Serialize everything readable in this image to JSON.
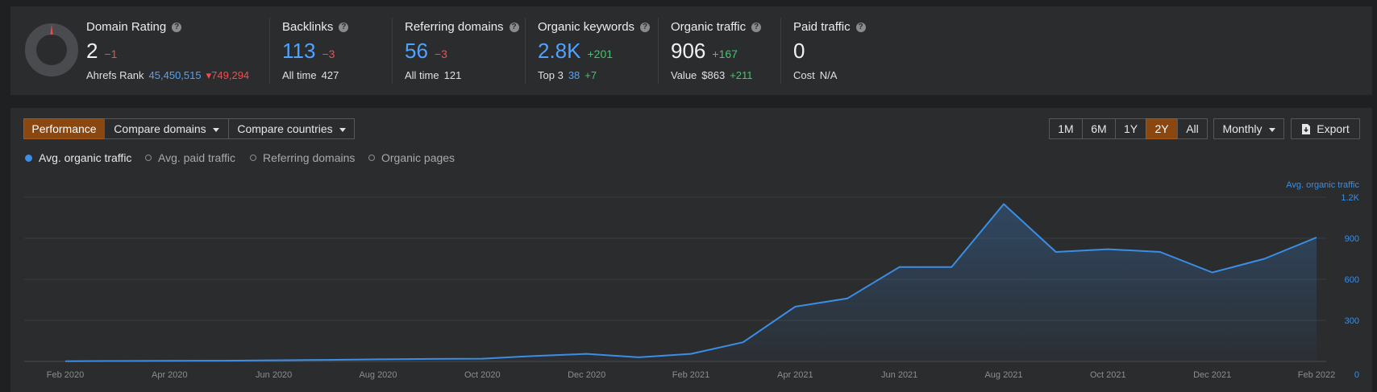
{
  "metrics": {
    "domain_rating": {
      "label": "Domain Rating",
      "value": "2",
      "change": "−1",
      "rank_label": "Ahrefs Rank",
      "rank_value": "45,450,515",
      "rank_change": "749,294"
    },
    "backlinks": {
      "label": "Backlinks",
      "value": "113",
      "change": "−3",
      "sub_label": "All time",
      "sub_value": "427"
    },
    "referring_domains": {
      "label": "Referring domains",
      "value": "56",
      "change": "−3",
      "sub_label": "All time",
      "sub_value": "121"
    },
    "organic_keywords": {
      "label": "Organic keywords",
      "value": "2.8K",
      "change": "+201",
      "sub_label": "Top 3",
      "sub_value": "38",
      "sub_change": "+7"
    },
    "organic_traffic": {
      "label": "Organic traffic",
      "value": "906",
      "change": "+167",
      "sub_label": "Value",
      "sub_value": "$863",
      "sub_change": "+211"
    },
    "paid_traffic": {
      "label": "Paid traffic",
      "value": "0",
      "sub_label": "Cost",
      "sub_value": "N/A"
    },
    "help_glyph": "?"
  },
  "toolbar": {
    "tabs": [
      "Performance",
      "Compare domains",
      "Compare countries"
    ],
    "active_tab": "Performance",
    "ranges": [
      "1M",
      "6M",
      "1Y",
      "2Y",
      "All"
    ],
    "active_range": "2Y",
    "interval": "Monthly",
    "export_label": "Export"
  },
  "legend": [
    {
      "label": "Avg. organic traffic",
      "active": true
    },
    {
      "label": "Avg. paid traffic",
      "active": false
    },
    {
      "label": "Referring domains",
      "active": false
    },
    {
      "label": "Organic pages",
      "active": false
    }
  ],
  "colors": {
    "accent": "#8a4710",
    "line": "#3a8ee6",
    "positive": "#45c46d",
    "negative": "#f04e4e",
    "link": "#4da3ff"
  },
  "chart_data": {
    "type": "area",
    "series": [
      {
        "name": "Avg. organic traffic",
        "x": [
          "2020-02",
          "2020-03",
          "2020-04",
          "2020-05",
          "2020-06",
          "2020-07",
          "2020-08",
          "2020-09",
          "2020-10",
          "2020-11",
          "2020-12",
          "2021-01",
          "2021-02",
          "2021-03",
          "2021-04",
          "2021-05",
          "2021-06",
          "2021-07",
          "2021-08",
          "2021-09",
          "2021-10",
          "2021-11",
          "2021-12",
          "2022-01",
          "2022-02"
        ],
        "values": [
          2,
          3,
          4,
          5,
          8,
          11,
          15,
          18,
          20,
          40,
          55,
          30,
          55,
          140,
          400,
          460,
          690,
          690,
          1150,
          800,
          820,
          800,
          650,
          750,
          906
        ]
      }
    ],
    "x_tick_labels": [
      "Feb 2020",
      "Apr 2020",
      "Jun 2020",
      "Aug 2020",
      "Oct 2020",
      "Dec 2020",
      "Feb 2021",
      "Apr 2021",
      "Jun 2021",
      "Aug 2021",
      "Oct 2021",
      "Dec 2021",
      "Feb 2022"
    ],
    "y_ticks": [
      0,
      300,
      600,
      900,
      1200
    ],
    "y_tick_labels": [
      "0",
      "300",
      "600",
      "900",
      "1.2K"
    ],
    "ylim": [
      0,
      1200
    ],
    "y_axis_title": "Avg. organic traffic",
    "grid": true
  }
}
